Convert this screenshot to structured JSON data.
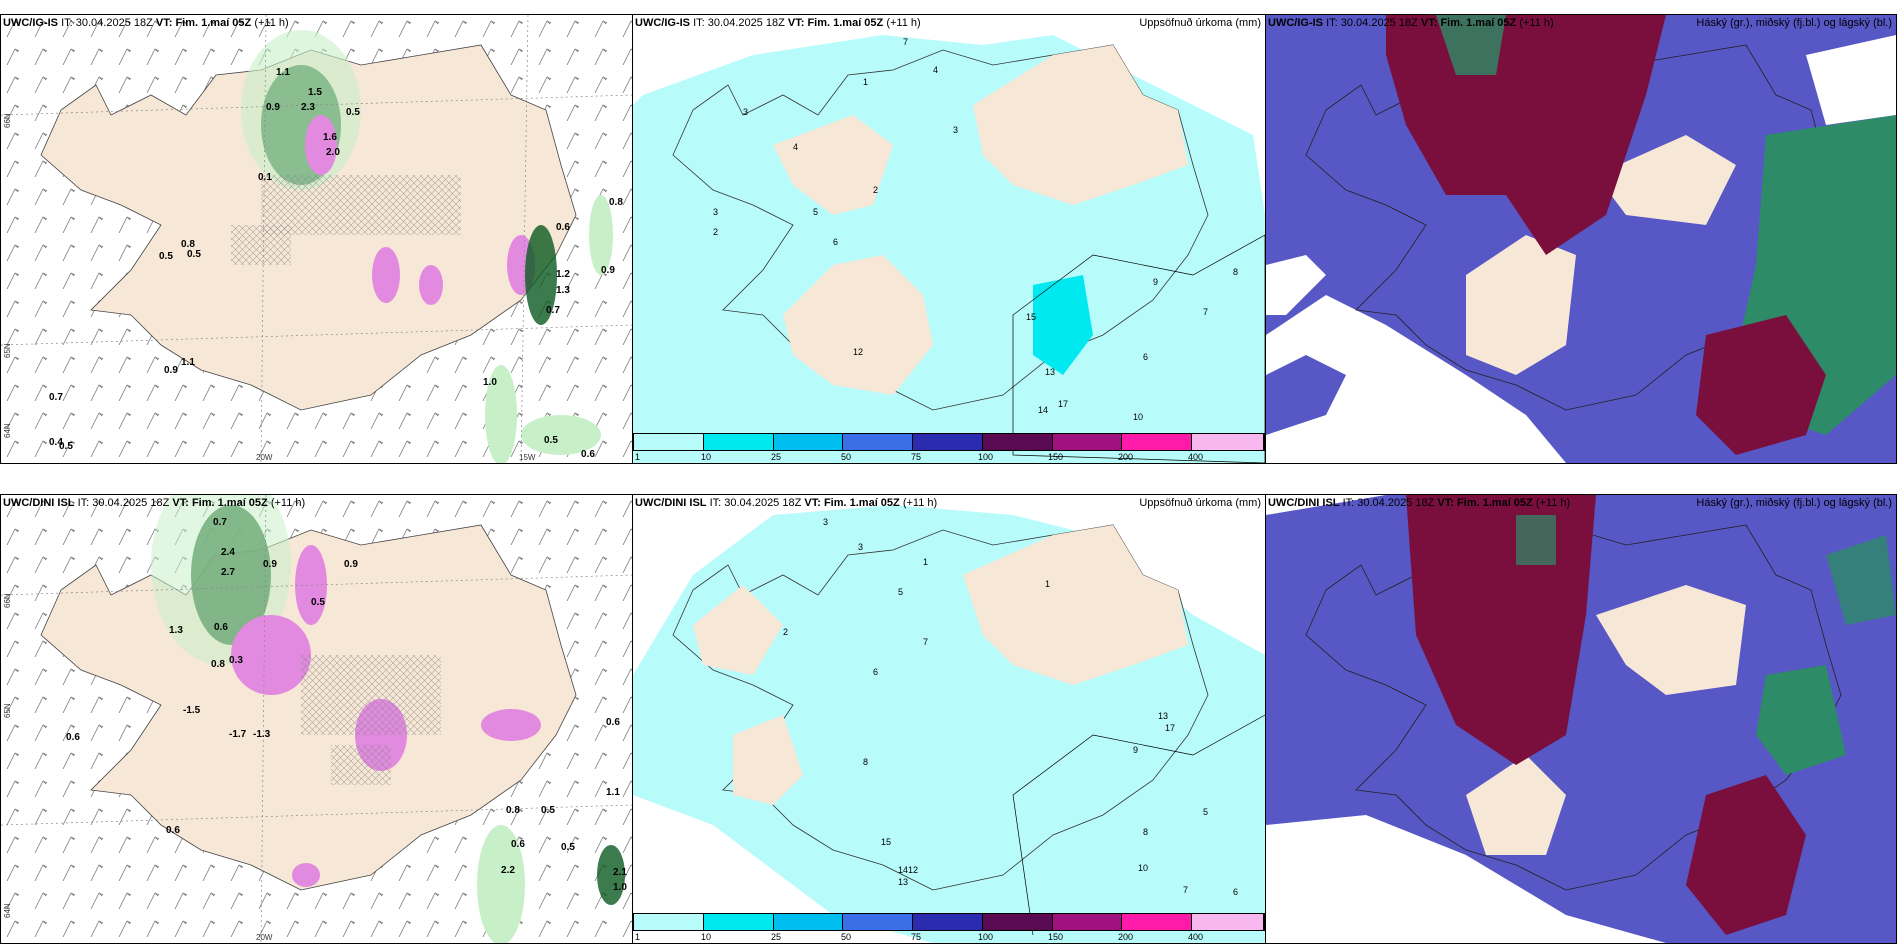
{
  "rows": [
    {
      "model": "UWC/IG-IS",
      "it_label": "IT:",
      "it_value": "30.04.2025 18Z",
      "vt_label": "VT:",
      "vt_value": "Fim. 1.maí 05Z",
      "lead": "(+11 h)",
      "wind_labels": [
        "1.1",
        "0.9",
        "2.3",
        "1.6",
        "0.5",
        "0.1",
        "0.8",
        "0.5",
        "0.5",
        "0.9",
        "0.7",
        "1.1",
        "1.0",
        "0.9",
        "0.8",
        "0.6",
        "0.7",
        "0.4",
        "0.5",
        "0.5",
        "0.6",
        "2.0",
        "1.5",
        "1.2",
        "1.3"
      ],
      "precip_labels": [
        "7",
        "4",
        "1",
        "3",
        "4",
        "2",
        "6",
        "5",
        "3",
        "3",
        "2",
        "15",
        "12",
        "14",
        "17",
        "13",
        "10",
        "8",
        "9",
        "6",
        "7"
      ],
      "lon_labels": [
        "20W",
        "15W"
      ],
      "lat_labels": [
        "66N",
        "64N",
        "65N"
      ]
    },
    {
      "model": "UWC/DINI ISL",
      "it_label": "IT:",
      "it_value": "30.04.2025 18Z",
      "vt_label": "VT:",
      "vt_value": "Fim. 1.maí 05Z",
      "lead": "(+11 h)",
      "wind_labels": [
        "0.7",
        "2.4",
        "2.7",
        "0.9",
        "0.9",
        "0.5",
        "1.3",
        "0.6",
        "0.8",
        "0.3",
        "-1.5",
        "-1.7",
        "-1.3",
        "0.6",
        "0.6",
        "0.6",
        "1.1",
        "0.8",
        "0.5",
        "0.6",
        "0.5",
        "2.2",
        "1.0",
        "2.1"
      ],
      "precip_labels": [
        "3",
        "3",
        "1",
        "5",
        "2",
        "7",
        "6",
        "8",
        "15",
        "14",
        "13",
        "12",
        "1",
        "13",
        "17",
        "9",
        "8",
        "10",
        "7",
        "6",
        "5"
      ],
      "lon_labels": [
        "20W"
      ],
      "lat_labels": [
        "66N",
        "65N",
        "64N"
      ]
    }
  ],
  "titles": {
    "precip": "Uppsöfnuð úrkoma (mm)",
    "cloud": "Háský (gr.), miðský (fj.bl.) og lágský (bl.)"
  },
  "legend": {
    "ticks": [
      "1",
      "10",
      "25",
      "50",
      "75",
      "100",
      "150",
      "200",
      "400"
    ],
    "colors": [
      "#b8fbfb",
      "#00e8f0",
      "#00bff0",
      "#3b6fe8",
      "#2b2bb0",
      "#5a0a50",
      "#a0107e",
      "#ff1aaa",
      "#f7b7ef"
    ]
  },
  "colors": {
    "land": "#f7e7d6",
    "precip_light": "#b8fbfb",
    "precip_mid": "#00e8f0",
    "wind_green_light": "#c8f0c8",
    "wind_green_dark": "#0b5a20",
    "wind_pink": "#e28ae0",
    "cloud_low": "#5757c6",
    "cloud_mid": "#7a0f3e",
    "cloud_high": "#2e8b68"
  }
}
